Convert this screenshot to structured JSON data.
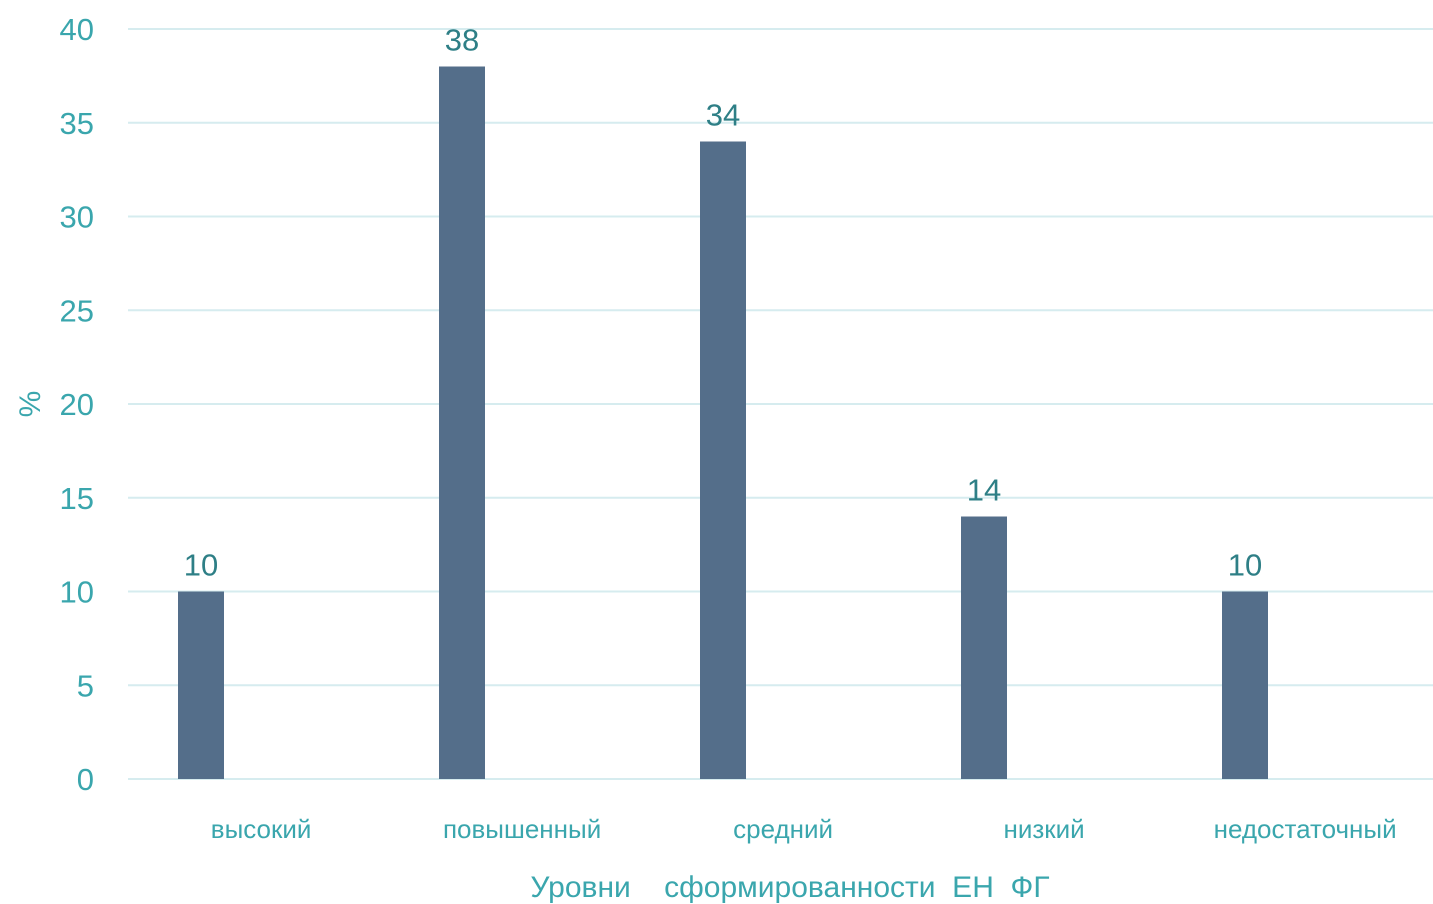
{
  "chart_data": {
    "type": "bar",
    "categories": [
      "высокий",
      "повышенный",
      "средний",
      "низкий",
      "недостаточный"
    ],
    "series": [
      {
        "values": [
          10,
          38,
          34,
          14,
          10
        ]
      }
    ],
    "title": "",
    "xlabel": "Уровни    сформированности  ЕН  ФГ",
    "ylabel": "%",
    "ylim": [
      0,
      40
    ],
    "yticks": [
      0,
      5,
      10,
      15,
      20,
      25,
      30,
      35,
      40
    ],
    "grid": true,
    "data_labels": true,
    "legend": "none",
    "colors": {
      "bar": "#546e8a",
      "text": "#3aa6ad",
      "data_label": "#2e7f86",
      "grid": "#d6ecef"
    }
  }
}
